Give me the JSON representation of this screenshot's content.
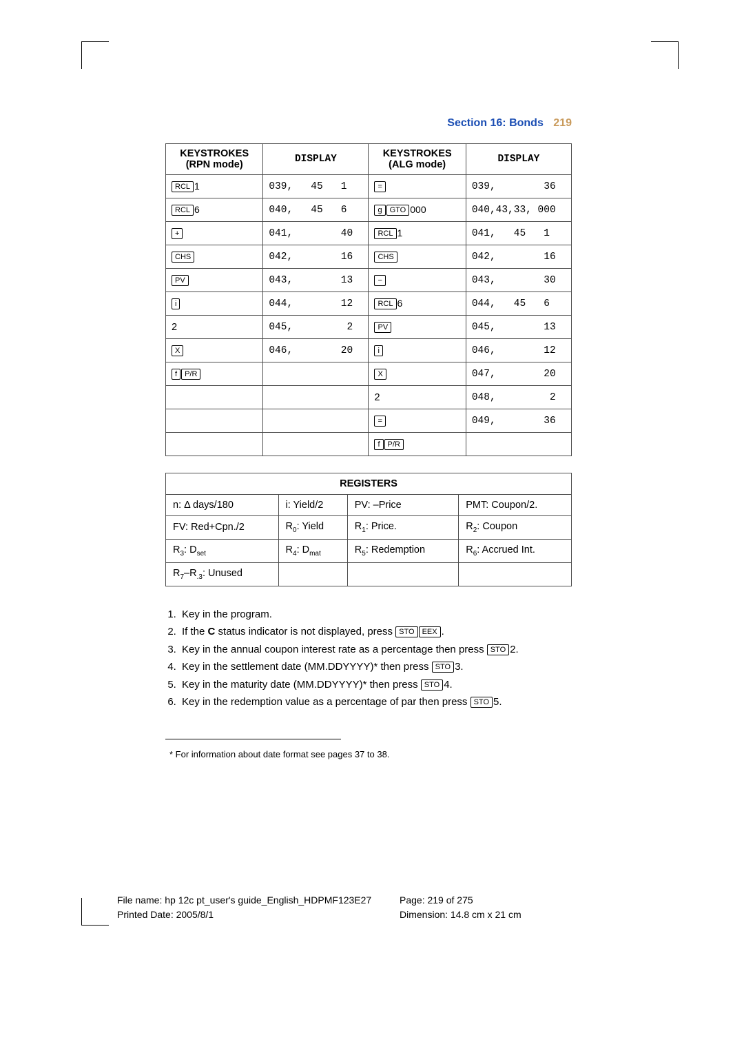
{
  "header": {
    "section": "Section 16: Bonds",
    "page": "219"
  },
  "tableHeaders": {
    "rpn": "KEYSTROKES\n(RPN mode)",
    "disp": "DISPLAY",
    "alg": "KEYSTROKES\n(ALG mode)"
  },
  "rows": [
    {
      "rk": [
        {
          "t": "RCL"
        }
      ],
      "ra": "1",
      "rd": "039,   45   1",
      "ak": [
        {
          "t": "="
        }
      ],
      "aa": "",
      "ad": "039,        36"
    },
    {
      "rk": [
        {
          "t": "RCL"
        }
      ],
      "ra": "6",
      "rd": "040,   45   6",
      "ak": [
        {
          "t": "g"
        },
        {
          "t": "GTO"
        }
      ],
      "aa": "000",
      "ad": "040,43,33, 000"
    },
    {
      "rk": [
        {
          "t": "+"
        }
      ],
      "ra": "",
      "rd": "041,        40",
      "ak": [
        {
          "t": "RCL"
        }
      ],
      "aa": "1",
      "ad": "041,   45   1"
    },
    {
      "rk": [
        {
          "t": "CHS"
        }
      ],
      "ra": "",
      "rd": "042,        16",
      "ak": [
        {
          "t": "CHS"
        }
      ],
      "aa": "",
      "ad": "042,        16"
    },
    {
      "rk": [
        {
          "t": "PV"
        }
      ],
      "ra": "",
      "rd": "043,        13",
      "ak": [
        {
          "t": "−"
        }
      ],
      "aa": "",
      "ad": "043,        30"
    },
    {
      "rk": [
        {
          "t": "i"
        }
      ],
      "ra": "",
      "rd": "044,        12",
      "ak": [
        {
          "t": "RCL"
        }
      ],
      "aa": "6",
      "ad": "044,   45   6"
    },
    {
      "rpnplain": "2",
      "rd": "045,         2",
      "ak": [
        {
          "t": "PV"
        }
      ],
      "aa": "",
      "ad": "045,        13"
    },
    {
      "rk": [
        {
          "t": "X"
        }
      ],
      "ra": "",
      "rd": "046,        20",
      "ak": [
        {
          "t": "i"
        }
      ],
      "aa": "",
      "ad": "046,        12"
    },
    {
      "rk": [
        {
          "t": "f"
        },
        {
          "t": "P/R"
        }
      ],
      "ra": "",
      "rd": "",
      "ak": [
        {
          "t": "X"
        }
      ],
      "aa": "",
      "ad": "047,        20"
    },
    {
      "rd": "",
      "algplain": "2",
      "ad": "048,         2"
    },
    {
      "rd": "",
      "ak": [
        {
          "t": "="
        }
      ],
      "aa": "",
      "ad": "049,        36"
    },
    {
      "rd": "",
      "ak": [
        {
          "t": "f"
        },
        {
          "t": "P/R"
        }
      ],
      "aa": "",
      "ad": ""
    }
  ],
  "registers": {
    "title": "REGISTERS",
    "cells": [
      [
        "n: Δ days/180",
        "i: Yield/2",
        "PV: –Price",
        "PMT: Coupon/2."
      ],
      [
        "FV: Red+Cpn./2",
        "R<sub>0</sub>: Yield",
        "R<sub>1</sub>: Price.",
        "R<sub>2</sub>: Coupon"
      ],
      [
        "R<sub>3</sub>: D<sub>set</sub>",
        "R<sub>4</sub>: D<sub>mat</sub>",
        "R<sub>5</sub>: Redemption",
        "R<sub>6</sub>: Accrued Int."
      ],
      [
        "R<sub>7</sub>–R<sub>.3</sub>: Unused",
        "",
        "",
        ""
      ]
    ]
  },
  "steps": [
    {
      "text": "Key in the program."
    },
    {
      "pre": "If the ",
      "bold": "C",
      "post": " status indicator is not displayed, press ",
      "keys": [
        {
          "t": "STO"
        },
        {
          "t": "EEX"
        }
      ],
      "after": "."
    },
    {
      "pre": "Key in the annual coupon interest rate as a percentage then press ",
      "keys": [
        {
          "t": "STO"
        }
      ],
      "after": "2."
    },
    {
      "pre": "Key in the settlement date (MM.DDYYYY)*  then press ",
      "keys": [
        {
          "t": "STO"
        }
      ],
      "after": "3."
    },
    {
      "pre": "Key in the maturity date (MM.DDYYYY)* then press ",
      "keys": [
        {
          "t": "STO"
        }
      ],
      "after": "4."
    },
    {
      "pre": "Key in the redemption value as a percentage of par then press ",
      "keys": [
        {
          "t": "STO"
        }
      ],
      "after": "5."
    }
  ],
  "footnote": "* For information about date format see pages 37 to 38.",
  "docfooter": {
    "file": "File name: hp 12c pt_user's guide_English_HDPMF123E27",
    "printed": "Printed Date: 2005/8/1",
    "pageinfo": "Page: 219 of 275",
    "dim": "Dimension: 14.8 cm x 21 cm"
  }
}
